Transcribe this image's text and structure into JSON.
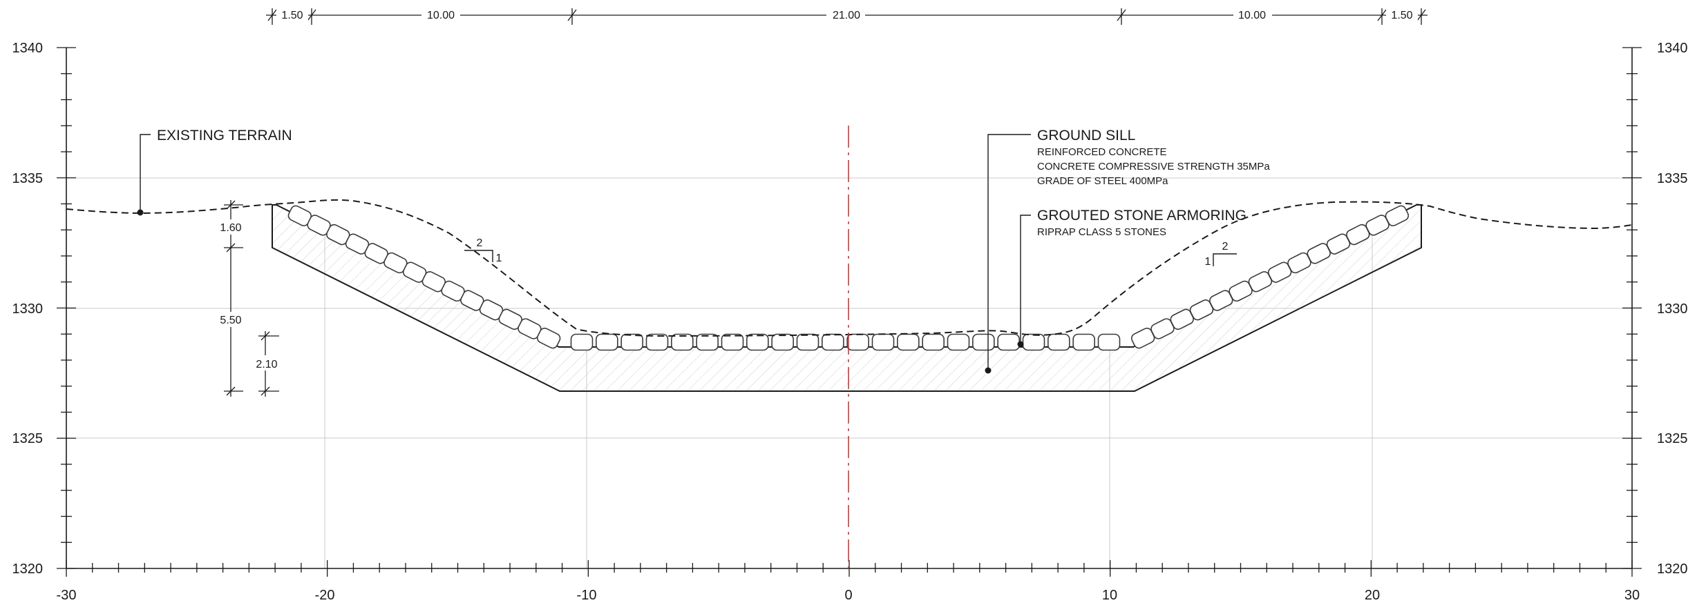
{
  "axes": {
    "x_ticks": [
      "-30",
      "-20",
      "-10",
      "0",
      "10",
      "20",
      "30"
    ],
    "y_ticks": [
      "1340",
      "1335",
      "1330",
      "1325",
      "1320"
    ]
  },
  "dimensions": {
    "top": [
      "1.50",
      "10.00",
      "21.00",
      "10.00",
      "1.50"
    ],
    "left_1": "1.60",
    "left_2": "5.50",
    "left_3": "2.10"
  },
  "slopes": {
    "left": {
      "run": "2",
      "rise": "1"
    },
    "right": {
      "run": "2",
      "rise": "1"
    }
  },
  "labels": {
    "existing_terrain": "EXISTING TERRAIN",
    "ground_sill": {
      "title": "GROUND SILL",
      "lines": [
        "REINFORCED CONCRETE",
        "CONCRETE COMPRESSIVE STRENGTH 35MPa",
        "GRADE OF STEEL 400MPa"
      ]
    },
    "grouted_stone": {
      "title": "GROUTED STONE ARMORING",
      "lines": [
        "RIPRAP CLASS 5 STONES"
      ]
    }
  },
  "colors": {
    "line": "#1a1a1a",
    "grid": "#c8c8c8",
    "centerline": "#e0302a",
    "hatch": "#c9c9c9"
  }
}
